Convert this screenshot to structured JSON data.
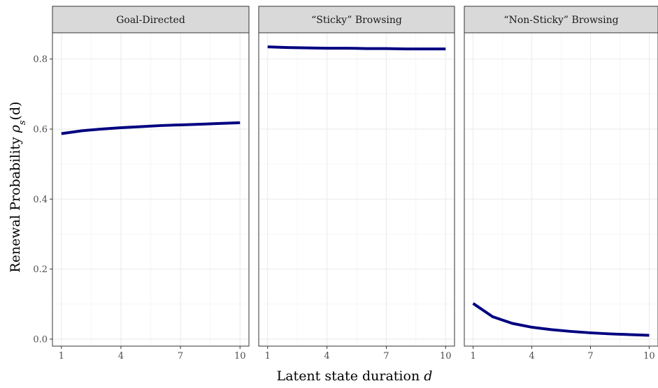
{
  "chart_data": {
    "type": "line",
    "xlabel": "Latent state duration d",
    "ylabel": "Renewal Probability ρs(d)",
    "x": [
      1,
      2,
      3,
      4,
      5,
      6,
      7,
      8,
      9,
      10
    ],
    "xticks": [
      1,
      4,
      7,
      10
    ],
    "yticks": [
      0.0,
      0.2,
      0.4,
      0.6,
      0.8
    ],
    "xlim": [
      0.55,
      10.45
    ],
    "ylim": [
      -0.02,
      0.875
    ],
    "grid": true,
    "line_color": "#000080",
    "panels": [
      {
        "title": "Goal-Directed",
        "values": [
          0.587,
          0.595,
          0.6,
          0.604,
          0.607,
          0.61,
          0.612,
          0.614,
          0.616,
          0.618
        ]
      },
      {
        "title": "“Sticky” Browsing",
        "values": [
          0.835,
          0.833,
          0.832,
          0.831,
          0.831,
          0.83,
          0.83,
          0.829,
          0.829,
          0.829
        ]
      },
      {
        "title": "“Non-Sticky” Browsing",
        "values": [
          0.102,
          0.064,
          0.045,
          0.034,
          0.027,
          0.022,
          0.018,
          0.015,
          0.013,
          0.011
        ]
      }
    ]
  }
}
